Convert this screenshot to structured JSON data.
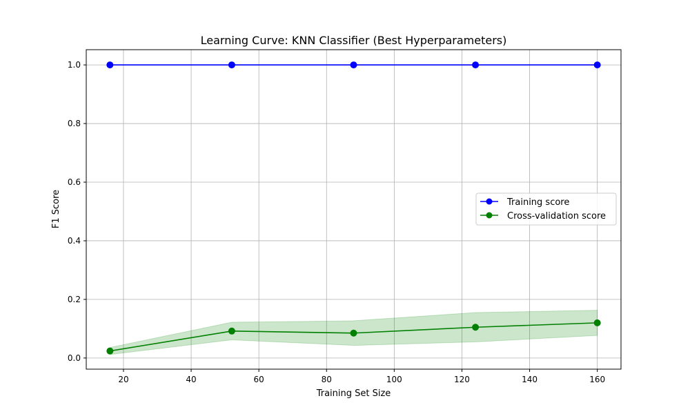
{
  "chart_data": {
    "type": "line",
    "title": "Learning Curve: KNN Classifier (Best Hyperparameters)",
    "xlabel": "Training Set Size",
    "ylabel": "F1 Score",
    "xlim": [
      9,
      167
    ],
    "ylim": [
      -0.038,
      1.052
    ],
    "xticks": [
      20,
      40,
      60,
      80,
      100,
      120,
      140,
      160
    ],
    "yticks": [
      0.0,
      0.2,
      0.4,
      0.6,
      0.8,
      1.0
    ],
    "xtick_labels": [
      "20",
      "40",
      "60",
      "80",
      "100",
      "120",
      "140",
      "160"
    ],
    "ytick_labels": [
      "0.0",
      "0.2",
      "0.4",
      "0.6",
      "0.8",
      "1.0"
    ],
    "grid": true,
    "legend_position": "center-right",
    "x": [
      16,
      52,
      88,
      124,
      160
    ],
    "series": [
      {
        "name": "Training score",
        "values": [
          1.0,
          1.0,
          1.0,
          1.0,
          1.0
        ],
        "color": "#0000ff",
        "band_lower": [
          1.0,
          1.0,
          1.0,
          1.0,
          1.0
        ],
        "band_upper": [
          1.0,
          1.0,
          1.0,
          1.0,
          1.0
        ],
        "band_color": "#0000ff"
      },
      {
        "name": "Cross-validation score",
        "values": [
          0.024,
          0.092,
          0.085,
          0.105,
          0.12
        ],
        "color": "#008000",
        "band_lower": [
          0.012,
          0.062,
          0.043,
          0.055,
          0.077
        ],
        "band_upper": [
          0.036,
          0.122,
          0.127,
          0.155,
          0.163
        ],
        "band_color": "#008000"
      }
    ]
  }
}
